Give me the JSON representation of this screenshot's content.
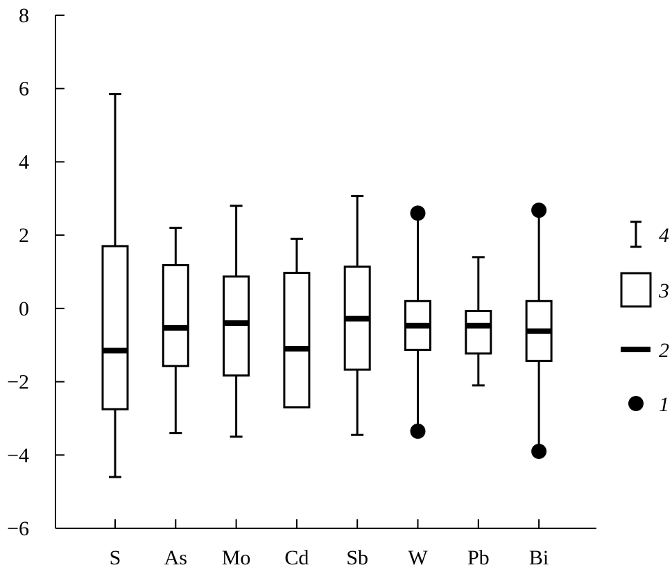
{
  "chart_data": {
    "type": "box",
    "title": "",
    "xlabel": "",
    "ylabel": "",
    "ylim": [
      -6,
      8
    ],
    "yticks": [
      8,
      6,
      4,
      2,
      0,
      -2,
      -4,
      -6
    ],
    "ytick_labels": [
      "8",
      "6",
      "4",
      "2",
      "0",
      "−2",
      "−4",
      "−6"
    ],
    "grid": false,
    "legend_placement": "right",
    "categories": [
      "S",
      "As",
      "Mo",
      "Cd",
      "Sb",
      "W",
      "Pb",
      "Bi"
    ],
    "boxes": [
      {
        "category": "S",
        "whisker_low": -4.6,
        "q1": -2.75,
        "median": -1.15,
        "q3": 1.7,
        "whisker_high": 5.85,
        "outliers": []
      },
      {
        "category": "As",
        "whisker_low": -3.4,
        "q1": -1.57,
        "median": -0.53,
        "q3": 1.18,
        "whisker_high": 2.2,
        "outliers": []
      },
      {
        "category": "Mo",
        "whisker_low": -3.5,
        "q1": -1.83,
        "median": -0.4,
        "q3": 0.87,
        "whisker_high": 2.8,
        "outliers": []
      },
      {
        "category": "Cd",
        "whisker_low": null,
        "q1": -2.7,
        "median": -1.1,
        "q3": 0.97,
        "whisker_high": 1.9,
        "outliers": []
      },
      {
        "category": "Sb",
        "whisker_low": -3.45,
        "q1": -1.67,
        "median": -0.28,
        "q3": 1.14,
        "whisker_high": 3.07,
        "outliers": []
      },
      {
        "category": "W",
        "whisker_low": -3.35,
        "q1": -1.13,
        "median": -0.47,
        "q3": 0.2,
        "whisker_high": 2.6,
        "outliers": [
          2.6,
          -3.35
        ]
      },
      {
        "category": "Pb",
        "whisker_low": -2.1,
        "q1": -1.23,
        "median": -0.47,
        "q3": -0.07,
        "whisker_high": 1.4,
        "outliers": []
      },
      {
        "category": "Bi",
        "whisker_low": -3.9,
        "q1": -1.43,
        "median": -0.62,
        "q3": 0.2,
        "whisker_high": 2.68,
        "outliers": [
          2.68,
          -3.9
        ]
      }
    ],
    "legend": [
      {
        "symbol": "whisker",
        "label": "4"
      },
      {
        "symbol": "box",
        "label": "3"
      },
      {
        "symbol": "median",
        "label": "2"
      },
      {
        "symbol": "dot",
        "label": "1"
      }
    ]
  }
}
